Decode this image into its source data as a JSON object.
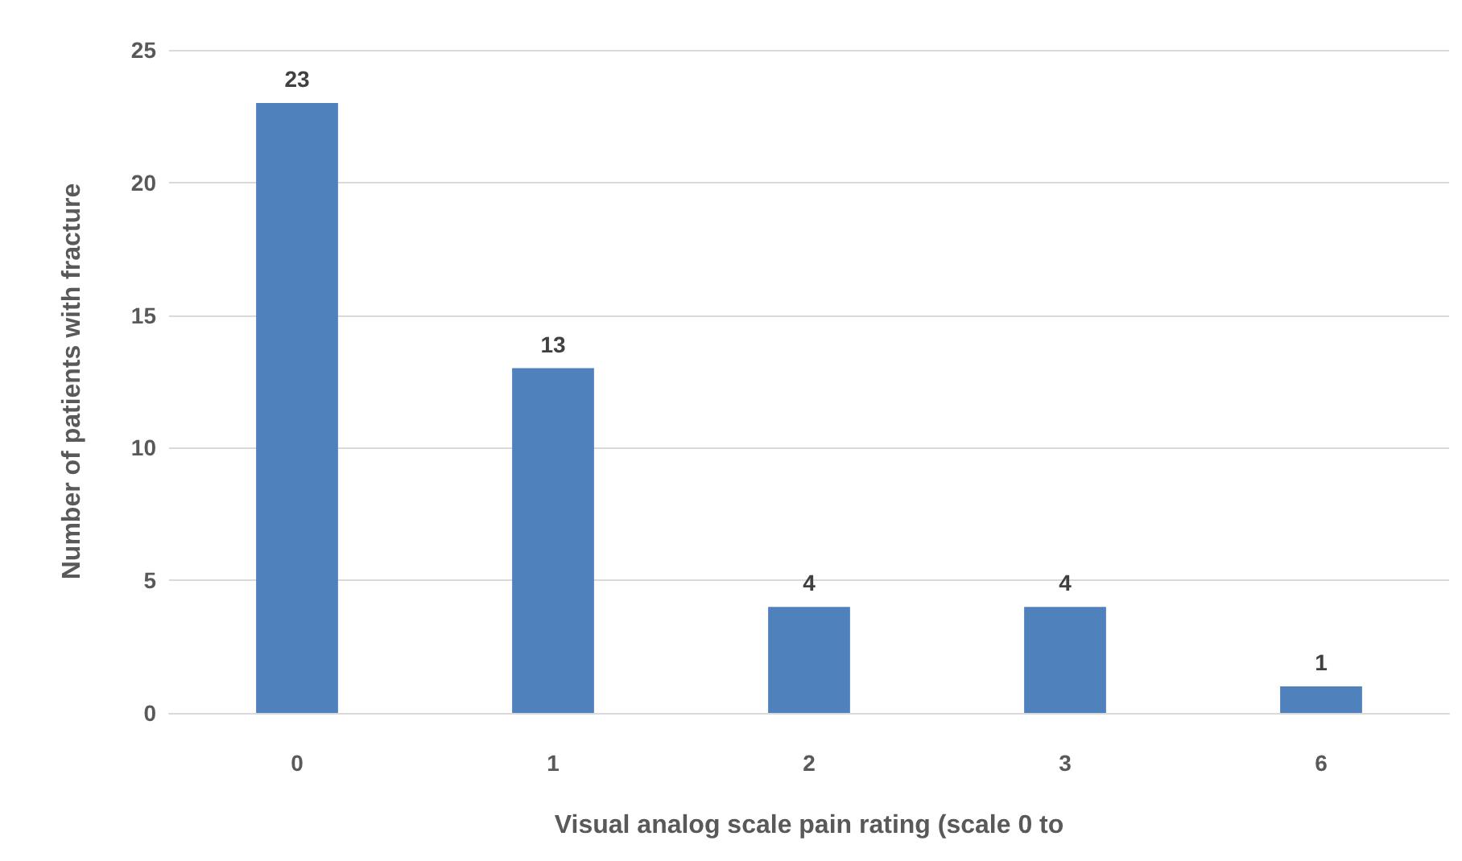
{
  "chart_data": {
    "type": "bar",
    "xlabel": "Visual analog scale pain rating (scale 0 to",
    "ylabel": "Number of patients with fracture",
    "categories": [
      "0",
      "1",
      "2",
      "3",
      "6"
    ],
    "values": [
      23,
      13,
      4,
      4,
      1
    ],
    "color": "#4f81bd",
    "ylim": [
      0,
      25
    ],
    "yticks": [
      0,
      5,
      10,
      15,
      20,
      25
    ],
    "grid": "y",
    "data_labels": true
  }
}
